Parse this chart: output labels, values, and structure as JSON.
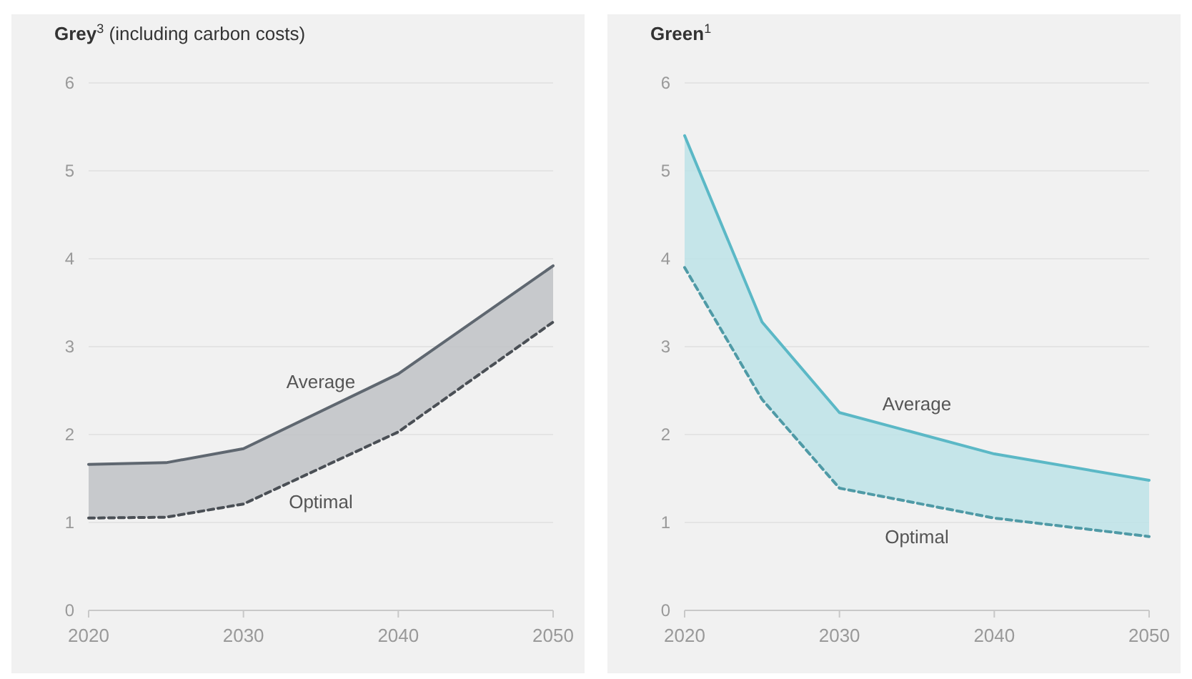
{
  "chart_data": [
    {
      "type": "line",
      "title": "Grey$^{3}$ (including carbon costs)",
      "x": [
        2020,
        2025,
        2030,
        2040,
        2050
      ],
      "xlim": [
        2020,
        2050
      ],
      "xticks": [
        2020,
        2030,
        2040,
        2050
      ],
      "ylim": [
        0,
        6
      ],
      "yticks": [
        0,
        1,
        2,
        3,
        4,
        5,
        6
      ],
      "grid": "y",
      "marker": "none",
      "series": [
        {
          "name": "Average",
          "color": "#5f6770",
          "line_style": "solid",
          "values": [
            1.66,
            1.68,
            1.84,
            2.69,
            3.92
          ],
          "lower": [
            1.05,
            1.06,
            1.21,
            2.03,
            3.28
          ],
          "upper": [
            1.66,
            1.68,
            1.84,
            2.69,
            3.92
          ]
        },
        {
          "name": "Optimal",
          "color": "#4a4f55",
          "line_style": "dashed",
          "values": [
            1.05,
            1.06,
            1.21,
            2.03,
            3.28
          ]
        }
      ]
    },
    {
      "type": "line",
      "title": "Green$^{1}$",
      "x": [
        2020,
        2025,
        2030,
        2040,
        2050
      ],
      "xlim": [
        2020,
        2050
      ],
      "xticks": [
        2020,
        2030,
        2040,
        2050
      ],
      "ylim": [
        0,
        6
      ],
      "yticks": [
        0,
        1,
        2,
        3,
        4,
        5,
        6
      ],
      "grid": "y",
      "marker": "none",
      "series": [
        {
          "name": "Average",
          "color": "#5bb8c6",
          "line_style": "solid",
          "values": [
            5.4,
            3.28,
            2.25,
            1.78,
            1.48
          ],
          "lower": [
            3.9,
            2.4,
            1.39,
            1.05,
            0.84
          ],
          "upper": [
            5.4,
            3.28,
            2.25,
            1.78,
            1.48
          ]
        },
        {
          "name": "Optimal",
          "color": "#4f9aa6",
          "line_style": "dashed",
          "values": [
            3.9,
            2.4,
            1.39,
            1.05,
            0.84
          ]
        }
      ]
    }
  ]
}
